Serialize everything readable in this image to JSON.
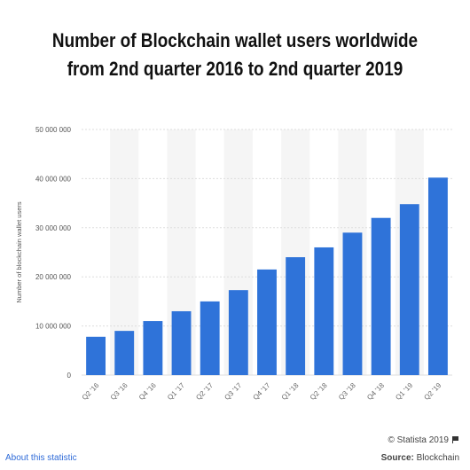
{
  "chart_data": {
    "type": "bar",
    "title": "Number of Blockchain wallet users worldwide from 2nd quarter 2016 to 2nd quarter 2019",
    "xlabel": "",
    "ylabel": "Number of blockchain wallet users",
    "ylim": [
      0,
      50000000
    ],
    "yticks": [
      0,
      10000000,
      20000000,
      30000000,
      40000000,
      50000000
    ],
    "ytick_labels": [
      "0",
      "10 000 000",
      "20 000 000",
      "30 000 000",
      "40 000 000",
      "50 000 000"
    ],
    "categories": [
      "Q2 '16",
      "Q3 '16",
      "Q4 '16",
      "Q1 '17",
      "Q2 '17",
      "Q3 '17",
      "Q4 '17",
      "Q1 '18",
      "Q2 '18",
      "Q3 '18",
      "Q4 '18",
      "Q1 '19",
      "Q2 '19"
    ],
    "values": [
      7800000,
      9000000,
      11000000,
      13000000,
      15000000,
      17300000,
      21500000,
      24000000,
      26000000,
      29000000,
      32000000,
      34800000,
      40200000
    ],
    "bar_color": "#2f73d9",
    "grid": true,
    "legend": "none"
  },
  "footer": {
    "about_link": "About this statistic",
    "credit": "© Statista 2019",
    "source_label": "Source:",
    "source_value": "Blockchain"
  }
}
